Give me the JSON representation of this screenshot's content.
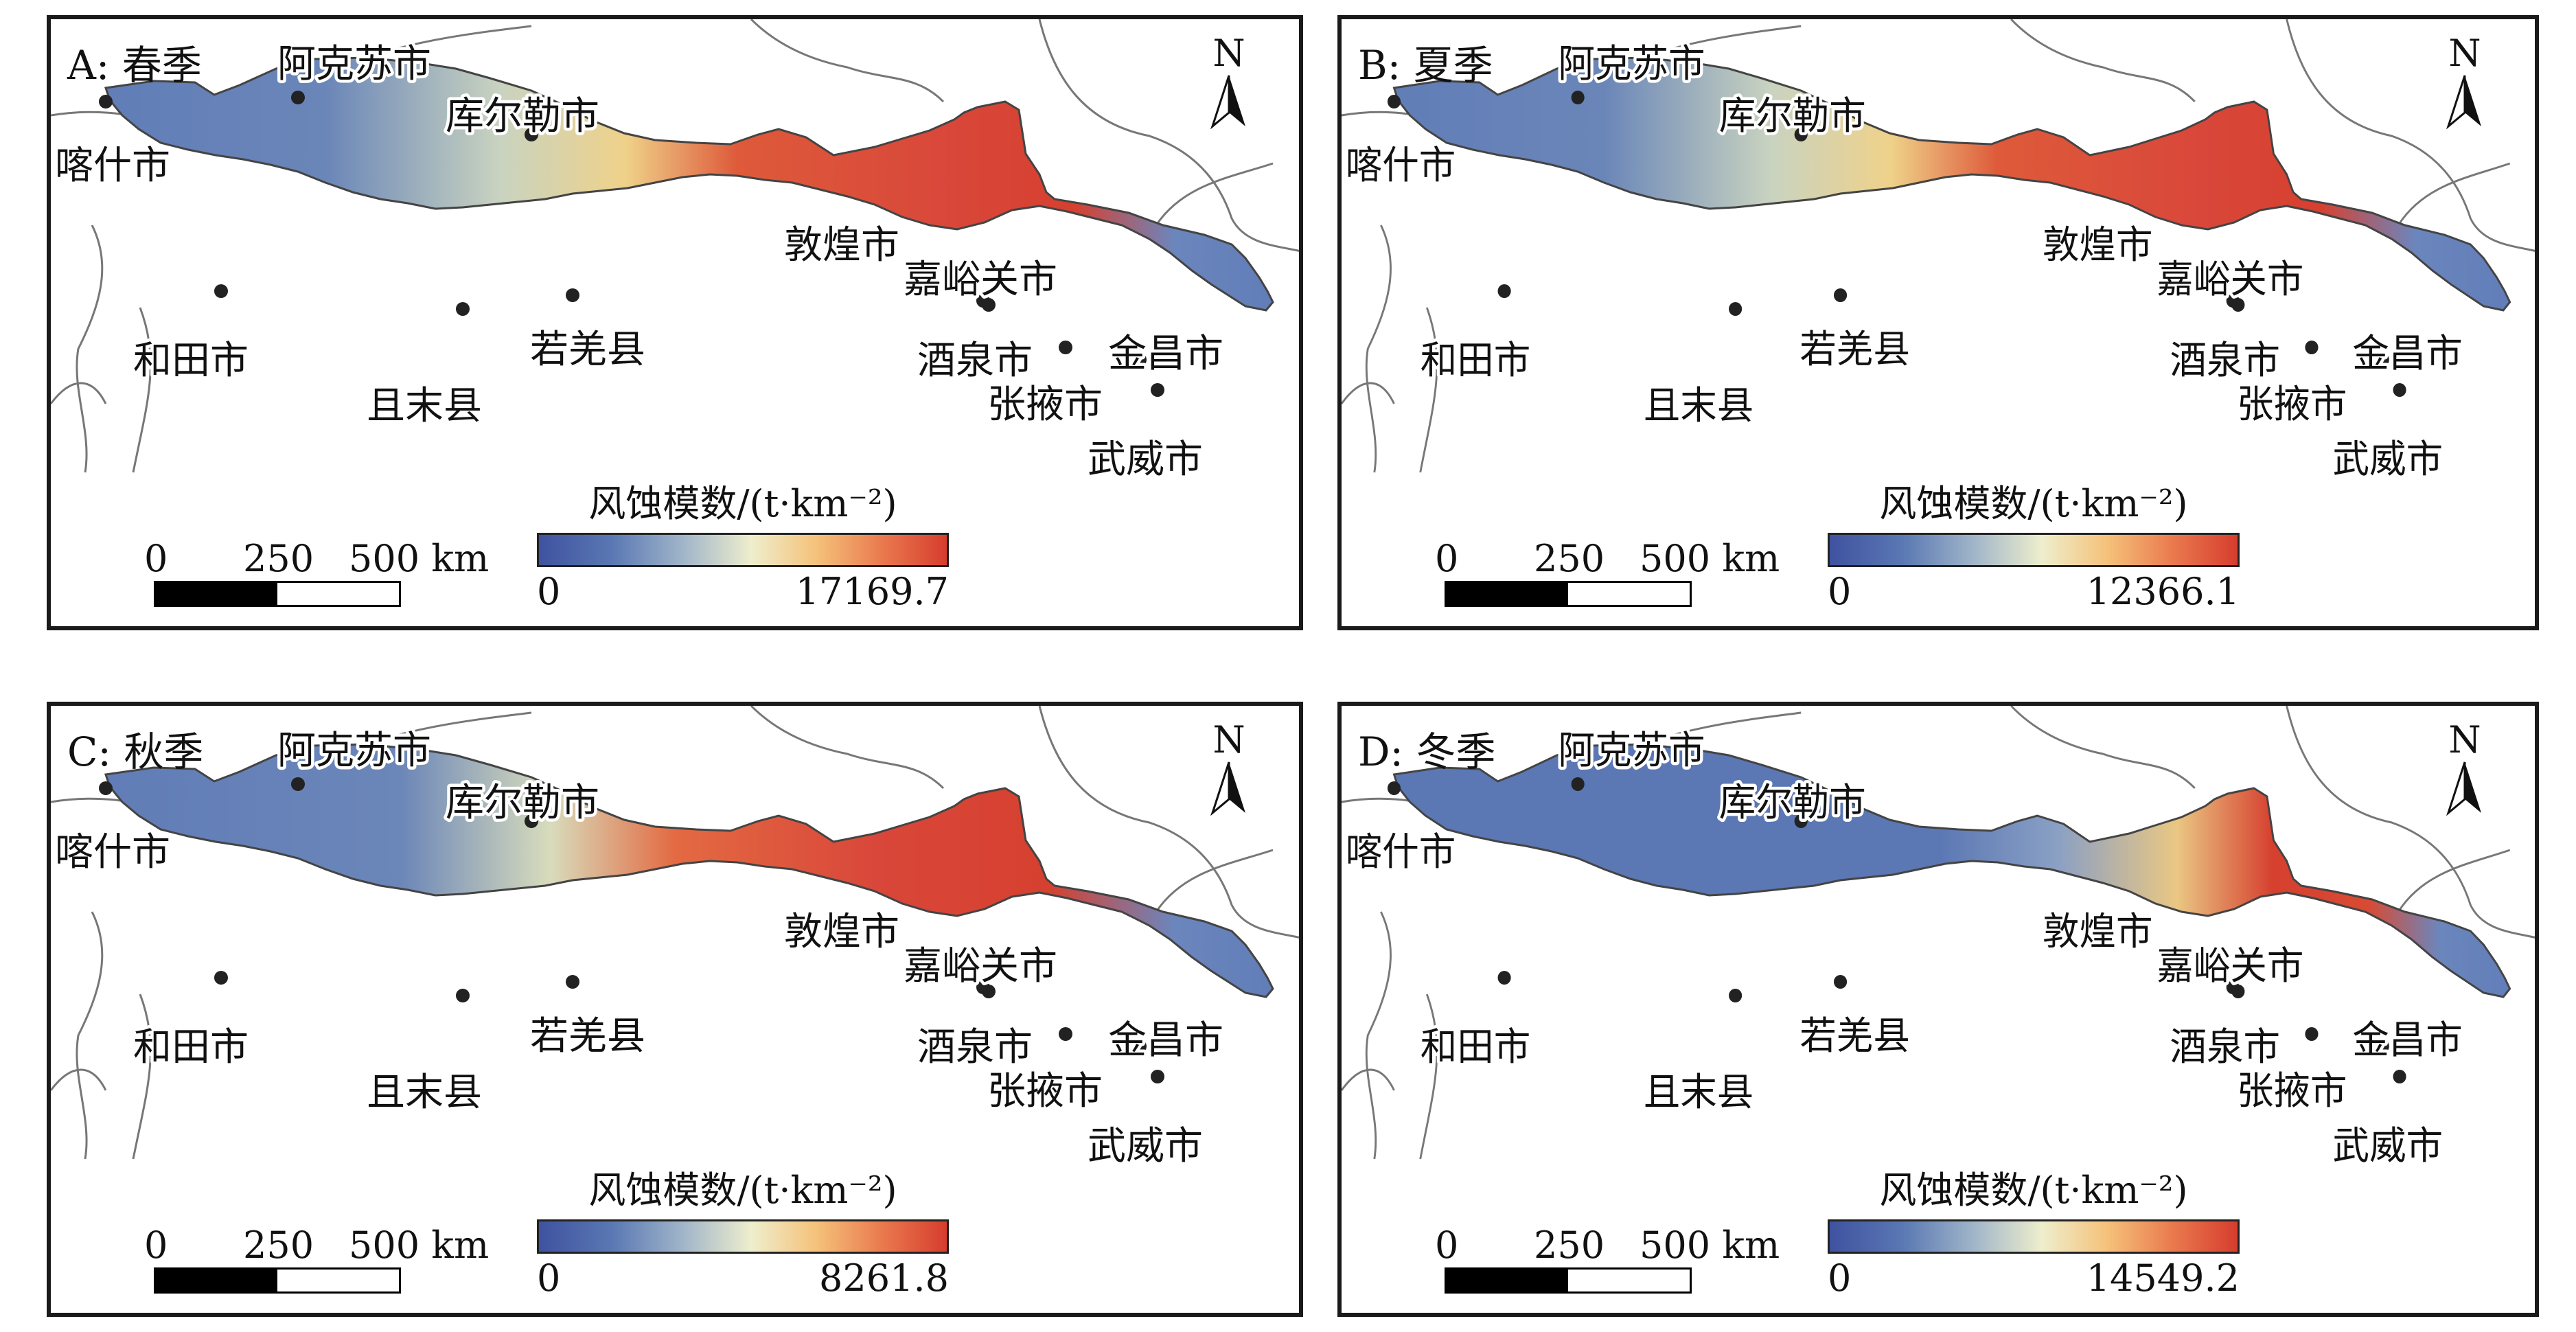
{
  "legend_title": "风蚀模数/(t·km⁻²)",
  "legend_min": "0",
  "north_label": "N",
  "scale": {
    "ticks": [
      "0",
      "250",
      "500 km"
    ]
  },
  "cities": [
    {
      "name": "阿克苏市"
    },
    {
      "name": "库尔勒市"
    },
    {
      "name": "喀什市"
    },
    {
      "name": "和田市"
    },
    {
      "name": "且末县"
    },
    {
      "name": "若羌县"
    },
    {
      "name": "敦煌市"
    },
    {
      "name": "嘉峪关市"
    },
    {
      "name": "酒泉市"
    },
    {
      "name": "金昌市"
    },
    {
      "name": "张掖市"
    },
    {
      "name": "武威市"
    }
  ],
  "legend_colors": [
    "#3f52a0",
    "#9fb4c9",
    "#eeeecd",
    "#f5c27a",
    "#d63d2e"
  ],
  "panels": [
    {
      "id": "A",
      "title": "A: 春季",
      "legend_max": "17169.7",
      "erosion_level": "high"
    },
    {
      "id": "B",
      "title": "B: 夏季",
      "legend_max": "12366.1",
      "erosion_level": "high"
    },
    {
      "id": "C",
      "title": "C: 秋季",
      "legend_max": "8261.8",
      "erosion_level": "medium"
    },
    {
      "id": "D",
      "title": "D: 冬季",
      "legend_max": "14549.2",
      "erosion_level": "low"
    }
  ]
}
